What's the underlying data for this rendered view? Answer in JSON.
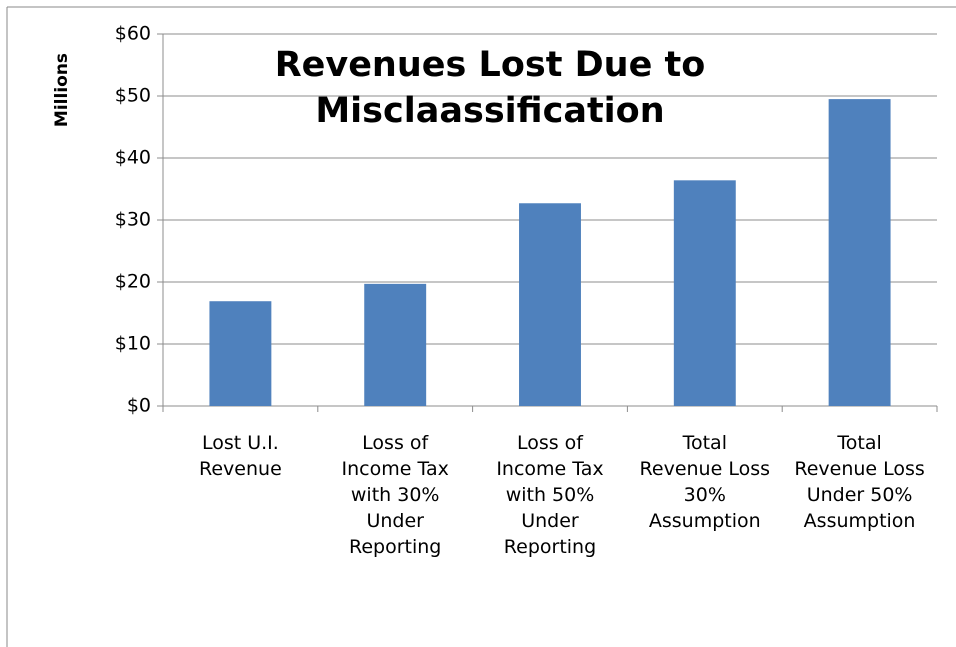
{
  "chart_data": {
    "type": "bar",
    "title": "Revenues Lost Due to\nMisclaassification",
    "y_label": "Millions",
    "categories": [
      "Lost U.I.\nRevenue",
      "Loss of\nIncome Tax\nwith 30%\nUnder\nReporting",
      "Loss of\nIncome Tax\nwith 50%\nUnder\nReporting",
      "Total\nRevenue Loss\n30%\nAssumption",
      "Total\nRevenue Loss\nUnder 50%\nAssumption"
    ],
    "values": [
      16.9,
      19.7,
      32.7,
      36.4,
      49.5
    ],
    "color": "#4f81bd",
    "ylim": [
      0,
      60
    ],
    "yticks": [
      {
        "value": 0,
        "label": "$0"
      },
      {
        "value": 10,
        "label": "$10"
      },
      {
        "value": 20,
        "label": "$20"
      },
      {
        "value": 30,
        "label": "$30"
      },
      {
        "value": 40,
        "label": "$40"
      },
      {
        "value": 50,
        "label": "$50"
      },
      {
        "value": 60,
        "label": "$60"
      }
    ],
    "grid": true
  }
}
